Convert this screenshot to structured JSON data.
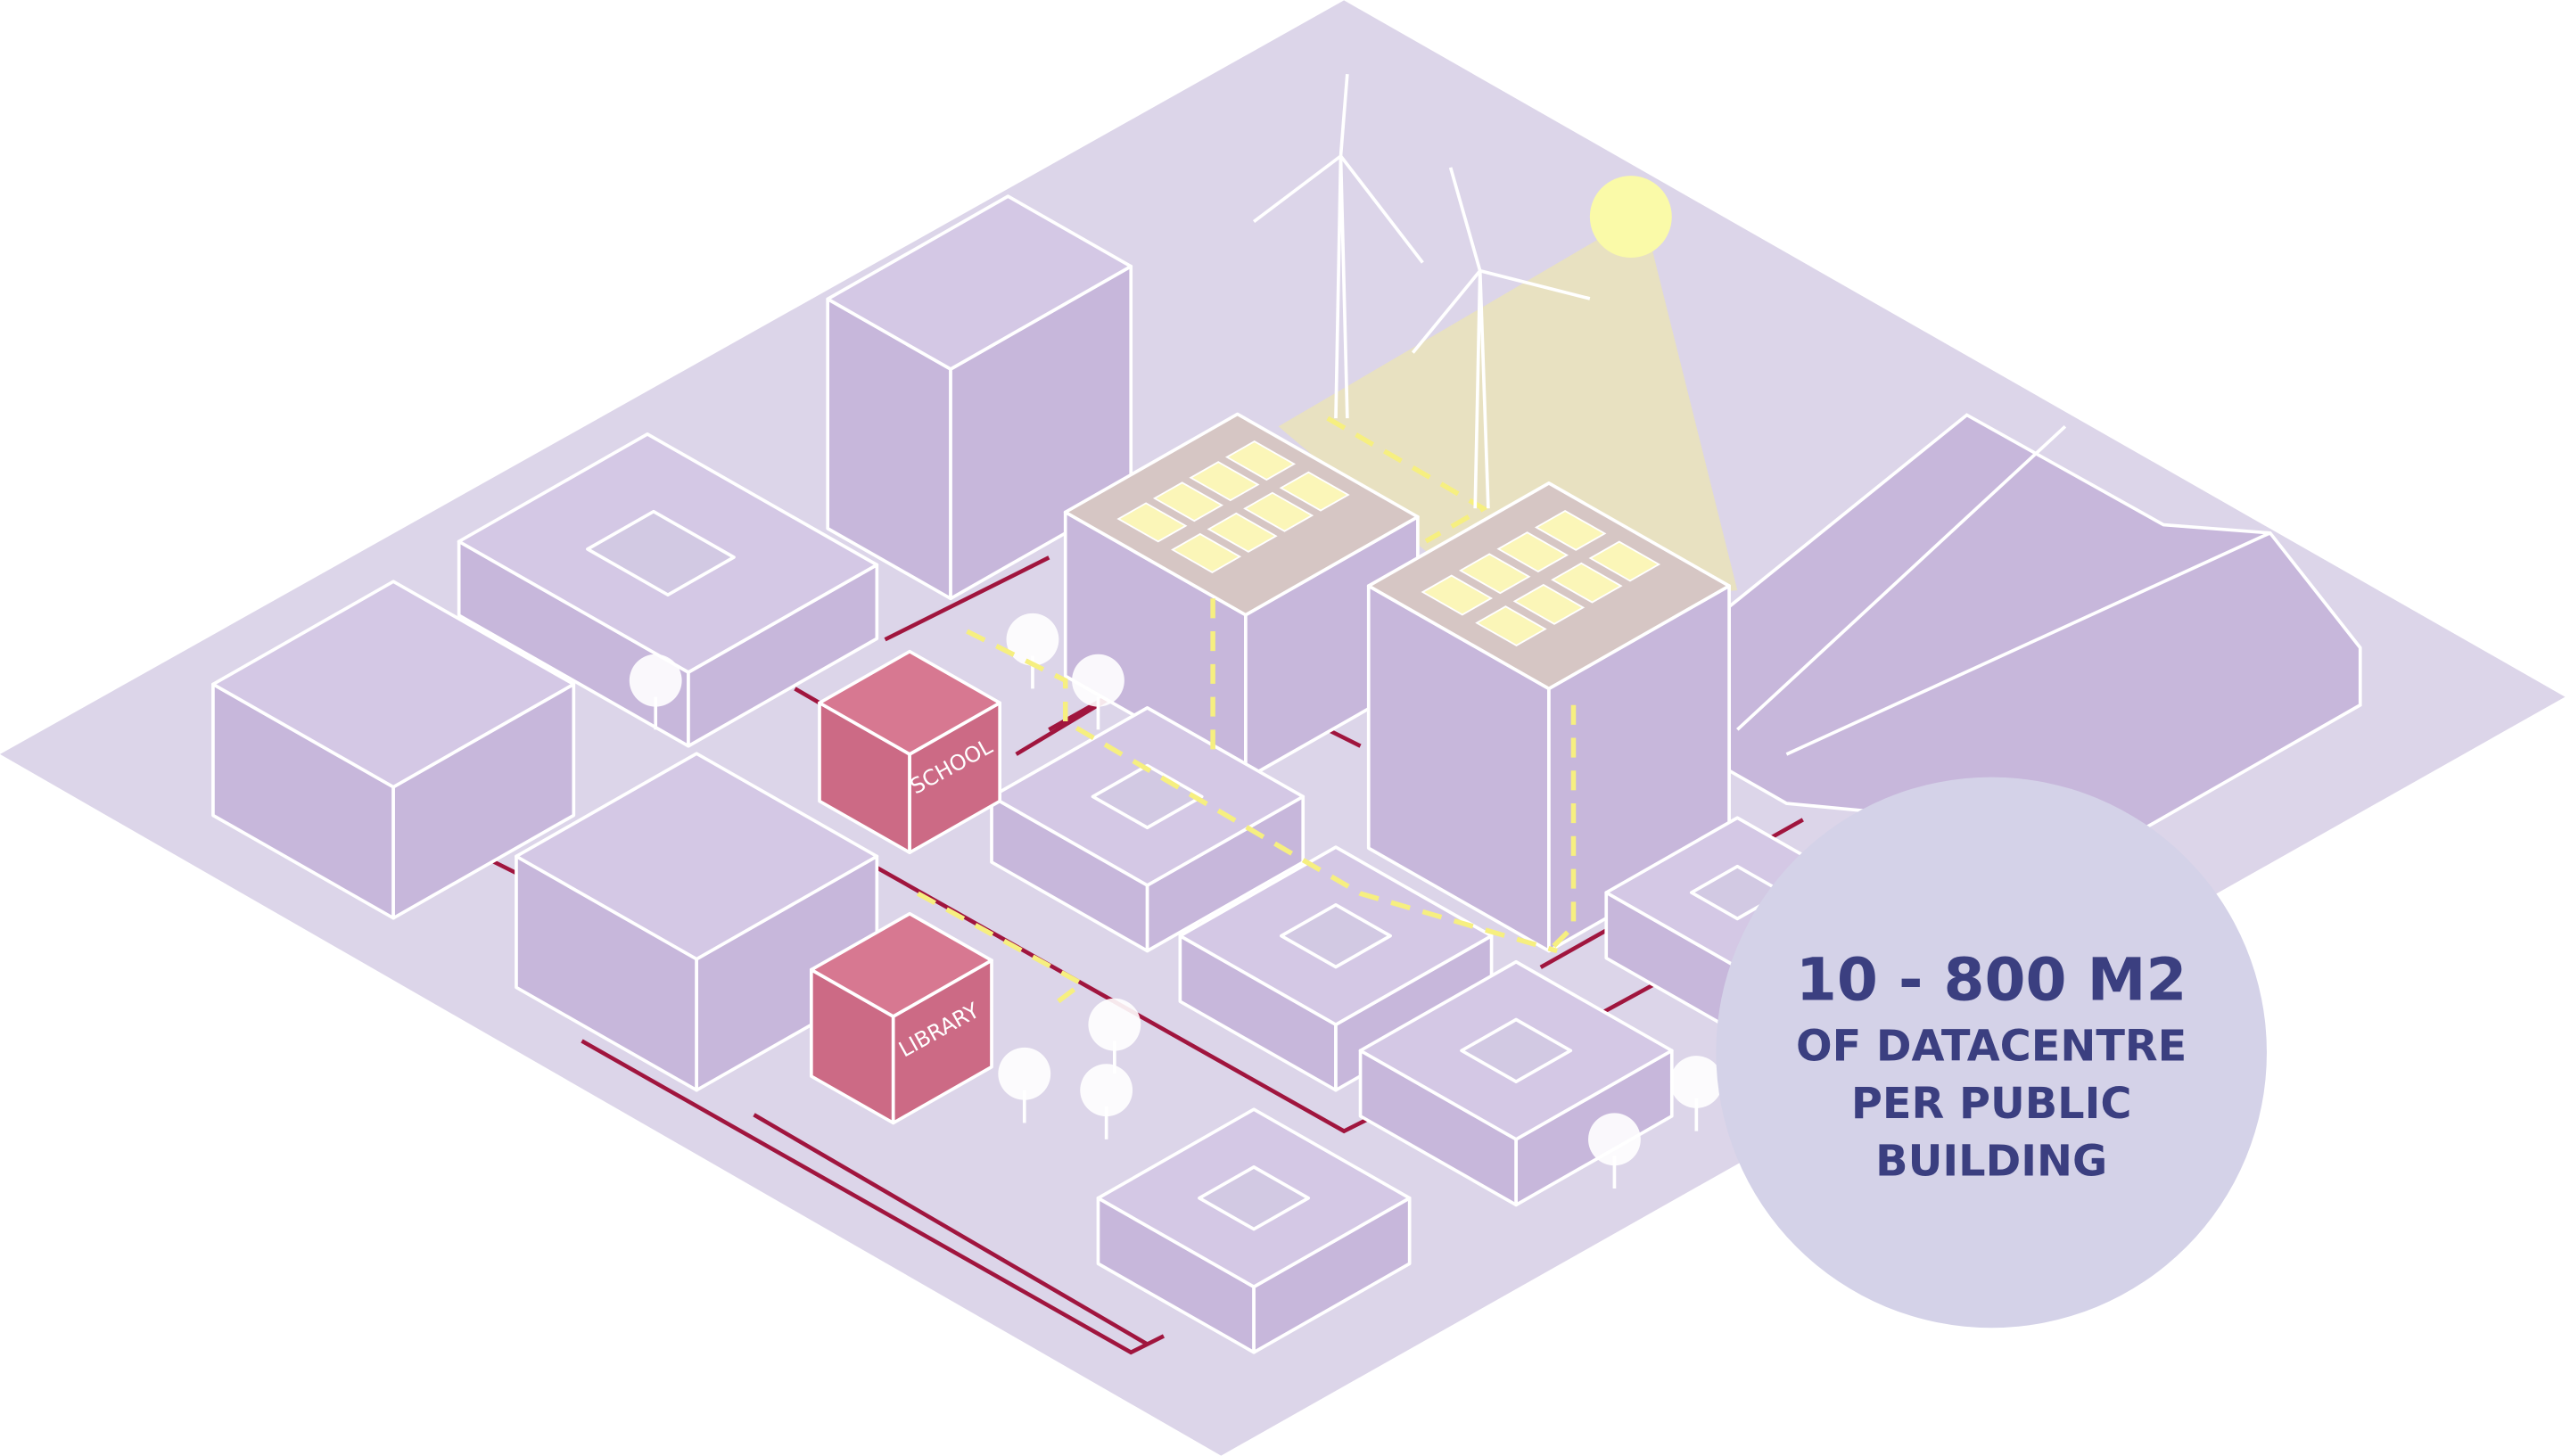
{
  "labels": {
    "school": "SCHOOL",
    "library": "LIBRARY"
  },
  "callout": {
    "headline": "10 - 800 M2",
    "lines": [
      "OF DATACENTRE",
      "PER PUBLIC",
      "BUILDING"
    ]
  }
}
